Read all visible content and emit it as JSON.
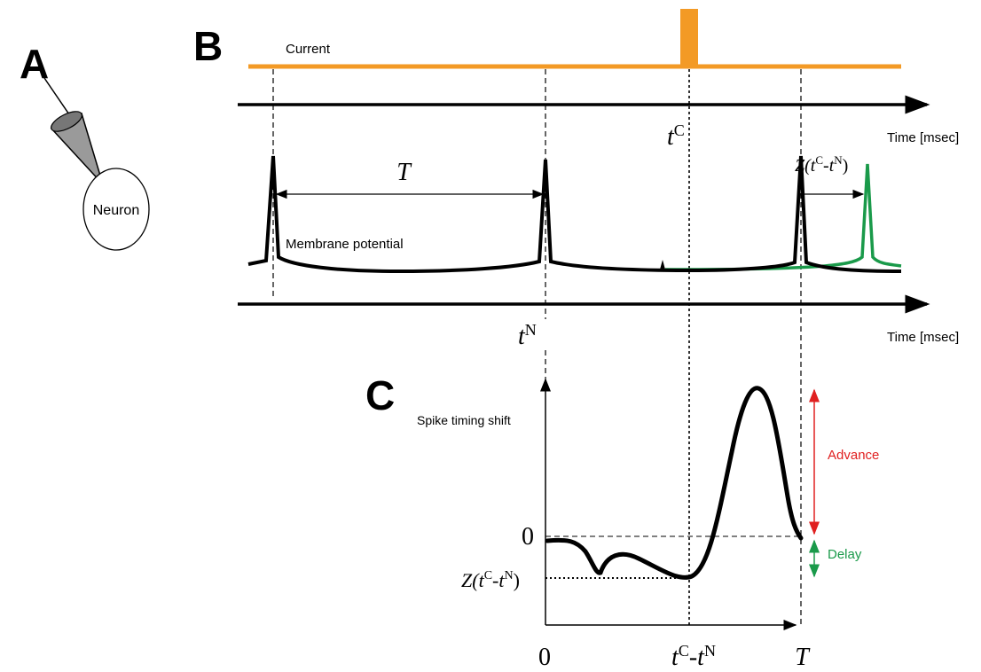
{
  "panel_a": {
    "letter": "A",
    "neuron_label": "Neuron"
  },
  "panel_b": {
    "letter": "B",
    "current_label": "Current",
    "time_axis_labels": [
      "Time [msec]",
      "Time [msec]"
    ],
    "period_label": "T",
    "stim_time": [
      "t",
      "C"
    ],
    "shift_label": [
      "Z(",
      "t",
      "C",
      "-",
      "t",
      "N",
      ")"
    ],
    "membrane_label": "Membrane potential",
    "spike_time": [
      "t",
      "N"
    ]
  },
  "panel_c": {
    "letter": "C",
    "y_axis_label": "Spike timing shift",
    "zero_label": "0",
    "shift_label": [
      "Z(",
      "t",
      "C",
      "-",
      "t",
      "N",
      ")"
    ],
    "advance_label": "Advance",
    "delay_label": "Delay",
    "x_origin_label": "0",
    "x_mid_label": [
      "t",
      "C",
      "-",
      "t",
      "N"
    ],
    "x_end_label": "T"
  }
}
